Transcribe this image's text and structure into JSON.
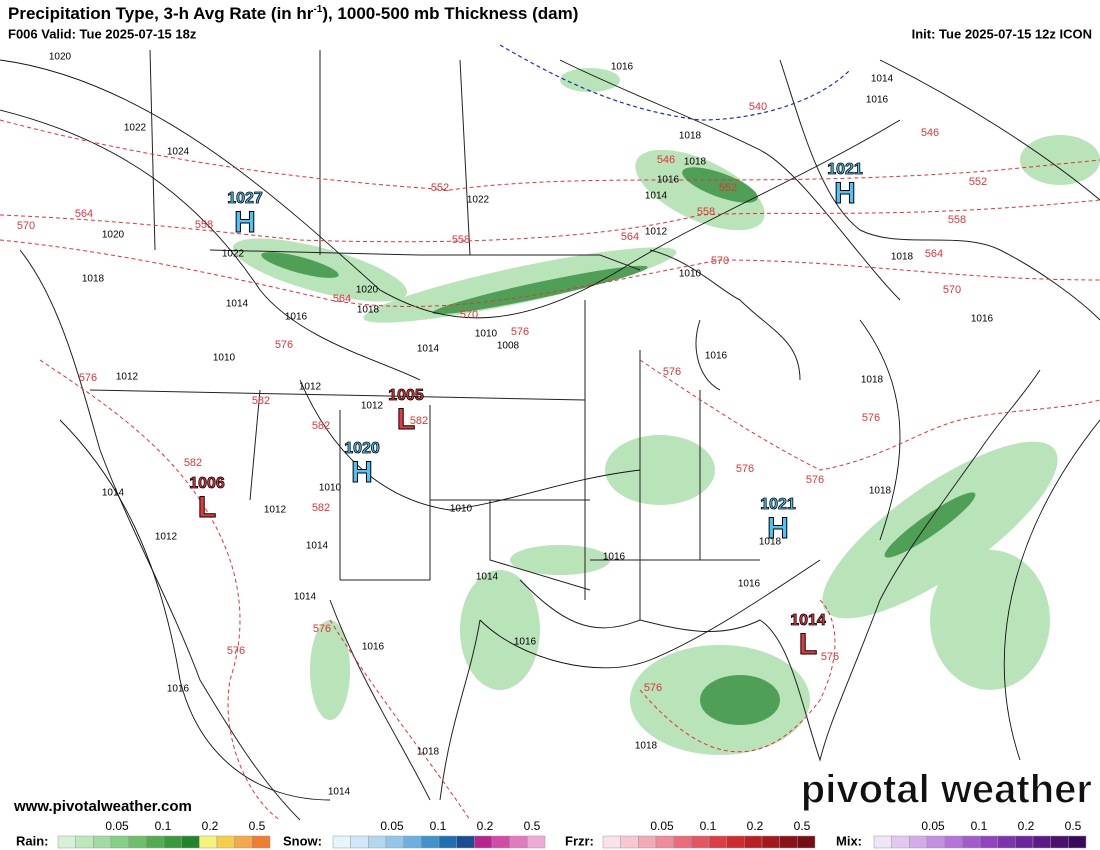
{
  "header": {
    "title_prefix": "Precipitation Type, 3-h Avg Rate (in hr",
    "title_sup": "-1",
    "title_suffix": "), 1000-500 mb Thickness (dam)",
    "valid": "F006 Valid: Tue 2025-07-15 18z",
    "init": "Init: Tue 2025-07-15 12z ICON"
  },
  "centers": [
    {
      "letter": "H",
      "pressure": "1027"
    },
    {
      "letter": "H",
      "pressure": "1021"
    },
    {
      "letter": "L",
      "pressure": "1005"
    },
    {
      "letter": "H",
      "pressure": "1020"
    },
    {
      "letter": "L",
      "pressure": "1006"
    },
    {
      "letter": "H",
      "pressure": "1021"
    },
    {
      "letter": "L",
      "pressure": "1014"
    }
  ],
  "isobar_labels": [
    "1020",
    "1022",
    "1024",
    "1020",
    "1018",
    "1022",
    "1014",
    "1016",
    "1020",
    "1018",
    "1022",
    "1016",
    "1014",
    "1016",
    "1018",
    "1018",
    "1016",
    "1014",
    "1012",
    "1010",
    "1010",
    "1008",
    "1014",
    "1010",
    "1012",
    "1012",
    "1012",
    "1010",
    "1010",
    "1012",
    "1014",
    "1012",
    "1014",
    "1014",
    "1014",
    "1016",
    "1016",
    "1016",
    "1016",
    "1018",
    "1014",
    "1016",
    "1018",
    "1018",
    "1018",
    "1016",
    "1018",
    "1018",
    "1016"
  ],
  "thickness_labels": [
    "540",
    "546",
    "546",
    "552",
    "552",
    "552",
    "558",
    "558",
    "558",
    "558",
    "564",
    "564",
    "564",
    "564",
    "570",
    "570",
    "570",
    "570",
    "576",
    "576",
    "576",
    "576",
    "576",
    "576",
    "576",
    "576",
    "576",
    "576",
    "576",
    "582",
    "582",
    "582",
    "582",
    "582"
  ],
  "watermark": "www.pivotalweather.com",
  "logo": "pivotal weather",
  "legend": [
    {
      "name": "Rain:",
      "ticks": [
        "0.05",
        "0.1",
        "0.2",
        "0.5"
      ],
      "colors": [
        "#d6f2d6",
        "#bce8bc",
        "#a1dba1",
        "#86cf86",
        "#6cc06c",
        "#52ad52",
        "#399a39",
        "#23852b",
        "#f7f27a",
        "#f5cf4c",
        "#f5a848",
        "#f07c2c"
      ]
    },
    {
      "name": "Snow:",
      "ticks": [
        "0.05",
        "0.1",
        "0.2",
        "0.5"
      ],
      "colors": [
        "#e8f4fb",
        "#cfe7f6",
        "#b2d8ef",
        "#92c6e8",
        "#6bb0df",
        "#3f93cf",
        "#1f6fb3",
        "#1a4d93",
        "#b8238f",
        "#d44aa8",
        "#e37ac0",
        "#eeaad6"
      ]
    },
    {
      "name": "Frzr:",
      "ticks": [
        "0.05",
        "0.1",
        "0.2",
        "0.5"
      ],
      "colors": [
        "#fbe2ea",
        "#f7c7d3",
        "#f3a9b8",
        "#ef8b9a",
        "#ea6c7c",
        "#e45560",
        "#dc3d45",
        "#cf2b2f",
        "#bb1f24",
        "#a5181e",
        "#8d1218",
        "#750d12"
      ]
    },
    {
      "name": "Mix:",
      "ticks": [
        "0.05",
        "0.1",
        "0.2",
        "0.5"
      ],
      "colors": [
        "#f1e4f8",
        "#e2c8f1",
        "#d3ace9",
        "#c38fe1",
        "#b373d8",
        "#a25ace",
        "#9044c1",
        "#7e33b0",
        "#6c259c",
        "#5b1a86",
        "#4a1170",
        "#3a0a5a"
      ]
    }
  ]
}
